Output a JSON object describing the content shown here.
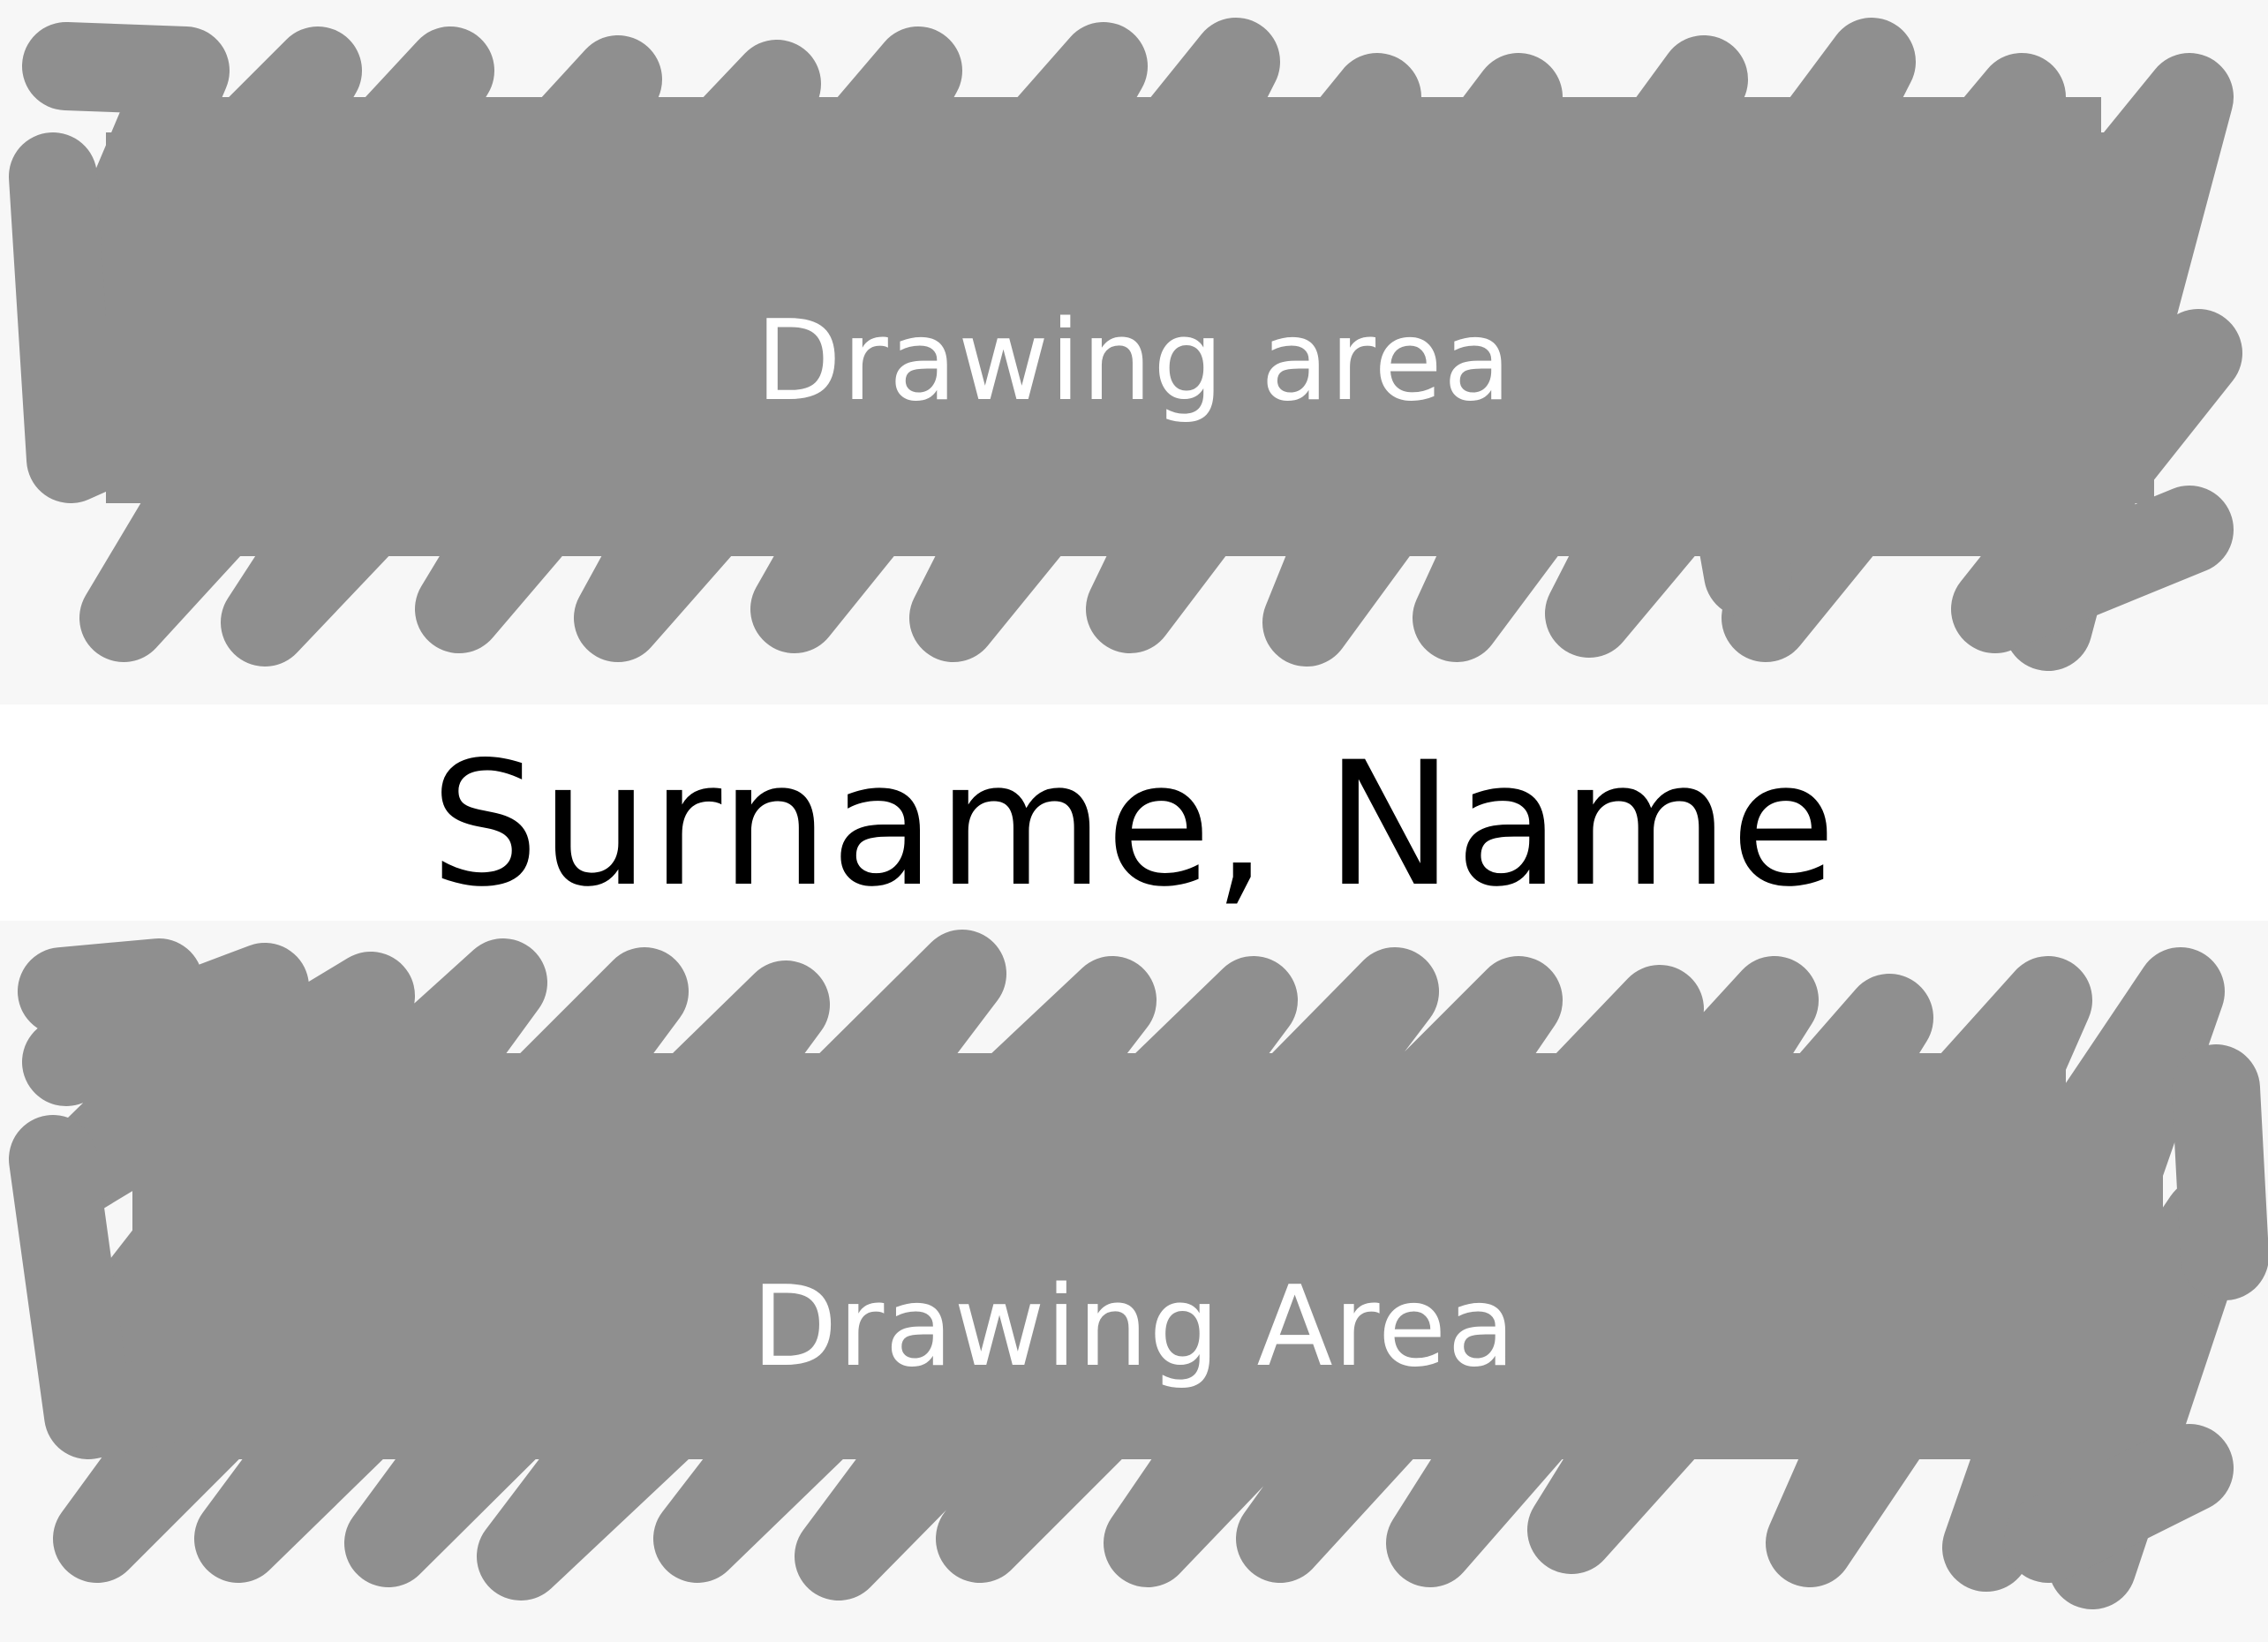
{
  "top_area": {
    "label": "Drawing area",
    "scribble_color": "#8f8f8f",
    "background_color": "#f7f7f7"
  },
  "name_field": {
    "text": "Surname, Name"
  },
  "bottom_area": {
    "label": "Drawing Area",
    "scribble_color": "#8f8f8f",
    "background_color": "#f7f7f7"
  }
}
